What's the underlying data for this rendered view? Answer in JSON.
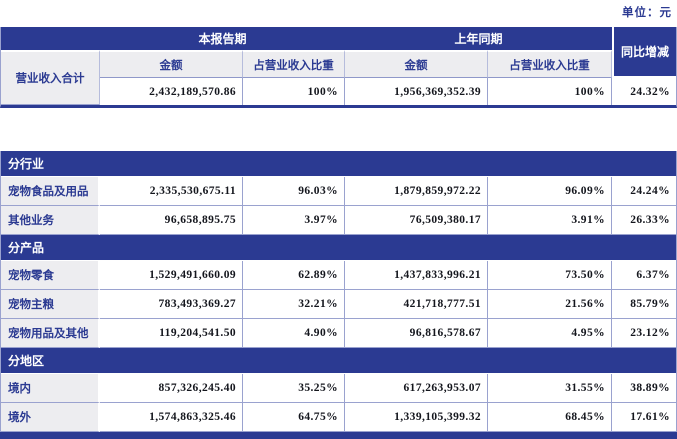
{
  "unit_label": "单位：元",
  "colors": {
    "accent_blue": "#2b3a92",
    "label_gray": "#ededf0",
    "grid_line": "#9aa2cf",
    "band_text": "#ffffff"
  },
  "table1": {
    "header": {
      "current_period": "本报告期",
      "prior_period": "上年同期",
      "yoy_change": "同比增减",
      "amount": "金额",
      "pct_of_revenue": "占营业收入比重"
    },
    "row": {
      "label": "营业收入合计",
      "amount_current": "2,432,189,570.86",
      "pct_current": "100%",
      "amount_prior": "1,956,369,352.39",
      "pct_prior": "100%",
      "yoy": "24.32%"
    }
  },
  "table2": {
    "sections": [
      {
        "title": "分行业",
        "rows": [
          {
            "label": "宠物食品及用品",
            "amount_current": "2,335,530,675.11",
            "pct_current": "96.03%",
            "amount_prior": "1,879,859,972.22",
            "pct_prior": "96.09%",
            "yoy": "24.24%"
          },
          {
            "label": "其他业务",
            "amount_current": "96,658,895.75",
            "pct_current": "3.97%",
            "amount_prior": "76,509,380.17",
            "pct_prior": "3.91%",
            "yoy": "26.33%"
          }
        ]
      },
      {
        "title": "分产品",
        "rows": [
          {
            "label": "宠物零食",
            "amount_current": "1,529,491,660.09",
            "pct_current": "62.89%",
            "amount_prior": "1,437,833,996.21",
            "pct_prior": "73.50%",
            "yoy": "6.37%"
          },
          {
            "label": "宠物主粮",
            "amount_current": "783,493,369.27",
            "pct_current": "32.21%",
            "amount_prior": "421,718,777.51",
            "pct_prior": "21.56%",
            "yoy": "85.79%"
          },
          {
            "label": "宠物用品及其他",
            "amount_current": "119,204,541.50",
            "pct_current": "4.90%",
            "amount_prior": "96,816,578.67",
            "pct_prior": "4.95%",
            "yoy": "23.12%"
          }
        ]
      },
      {
        "title": "分地区",
        "rows": [
          {
            "label": "境内",
            "amount_current": "857,326,245.40",
            "pct_current": "35.25%",
            "amount_prior": "617,263,953.07",
            "pct_prior": "31.55%",
            "yoy": "38.89%"
          },
          {
            "label": "境外",
            "amount_current": "1,574,863,325.46",
            "pct_current": "64.75%",
            "amount_prior": "1,339,105,399.32",
            "pct_prior": "68.45%",
            "yoy": "17.61%"
          }
        ]
      }
    ]
  }
}
